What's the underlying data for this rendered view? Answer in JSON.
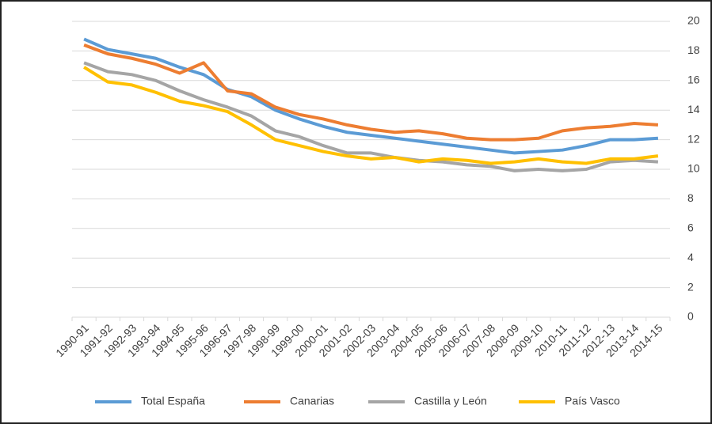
{
  "chart_data": {
    "type": "line",
    "categories": [
      "1990-91",
      "1991-92",
      "1992-93",
      "1993-94",
      "1994-95",
      "1995-96",
      "1996-97",
      "1997-98",
      "1998-99",
      "1999-00",
      "2000-01",
      "2001-02",
      "2002-03",
      "2003-04",
      "2004-05",
      "2005-06",
      "2006-07",
      "2007-08",
      "2008-09",
      "2009-10",
      "2010-11",
      "2011-12",
      "2012-13",
      "2013-14",
      "2014-15"
    ],
    "series": [
      {
        "name": "Total España",
        "color": "#5b9bd5",
        "values": [
          18.8,
          18.1,
          17.8,
          17.5,
          16.9,
          16.4,
          15.4,
          14.9,
          14.0,
          13.4,
          12.9,
          12.5,
          12.3,
          12.1,
          11.9,
          11.7,
          11.5,
          11.3,
          11.1,
          11.2,
          11.3,
          11.6,
          12.0,
          12.0,
          12.1
        ]
      },
      {
        "name": "Canarias",
        "color": "#ed7d31",
        "values": [
          18.4,
          17.8,
          17.5,
          17.1,
          16.5,
          17.2,
          15.3,
          15.1,
          14.2,
          13.7,
          13.4,
          13.0,
          12.7,
          12.5,
          12.6,
          12.4,
          12.1,
          12.0,
          12.0,
          12.1,
          12.6,
          12.8,
          12.9,
          13.1,
          13.0
        ]
      },
      {
        "name": "Castilla y León",
        "color": "#a5a5a5",
        "values": [
          17.2,
          16.6,
          16.4,
          16.0,
          15.3,
          14.7,
          14.2,
          13.6,
          12.6,
          12.2,
          11.6,
          11.1,
          11.1,
          10.8,
          10.6,
          10.5,
          10.3,
          10.2,
          9.9,
          10.0,
          9.9,
          10.0,
          10.5,
          10.6,
          10.5
        ]
      },
      {
        "name": "País Vasco",
        "color": "#ffc000",
        "values": [
          16.9,
          15.9,
          15.7,
          15.2,
          14.6,
          14.3,
          13.9,
          13.0,
          12.0,
          11.6,
          11.2,
          10.9,
          10.7,
          10.8,
          10.5,
          10.7,
          10.6,
          10.4,
          10.5,
          10.7,
          10.5,
          10.4,
          10.7,
          10.7,
          10.9
        ]
      }
    ],
    "ylim": [
      0,
      20
    ],
    "yticks": [
      0,
      2,
      4,
      6,
      8,
      10,
      12,
      14,
      16,
      18,
      20
    ],
    "grid": true,
    "legend": "bottom"
  }
}
